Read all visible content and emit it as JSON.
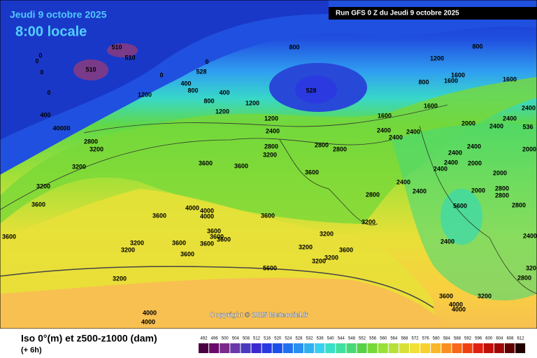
{
  "header": {
    "date": "Jeudi 9 octobre 2025",
    "time": "8:00 locale",
    "run": "Run GFS 0 Z du Jeudi 9 octobre 2025"
  },
  "footer": {
    "title": "Iso 0°(m) et z500-z1000 (dam)",
    "step": "(+ 6h)",
    "copyright": "Copyright © 2025 Meteociel.fr"
  },
  "scale": {
    "values": [
      492,
      496,
      500,
      504,
      508,
      512,
      516,
      520,
      524,
      528,
      532,
      536,
      540,
      544,
      548,
      552,
      556,
      560,
      564,
      568,
      572,
      576,
      580,
      584,
      588,
      592,
      596,
      600,
      604,
      608,
      612
    ],
    "colors": [
      "#4a0040",
      "#6a0a6a",
      "#7a2a8a",
      "#6a3aa8",
      "#4a3ac0",
      "#3a2ad0",
      "#2a3ae0",
      "#1a50e8",
      "#2070f0",
      "#2890f0",
      "#30b0f0",
      "#38d0f0",
      "#38e0c8",
      "#40e0a0",
      "#48d878",
      "#58d048",
      "#78d838",
      "#98e038",
      "#b8e038",
      "#d8e038",
      "#f0e038",
      "#f8d030",
      "#f8b828",
      "#f89020",
      "#f86818",
      "#f04010",
      "#e02010",
      "#c01008",
      "#a00808",
      "#600000",
      "#200000"
    ]
  },
  "contour_labels": [
    510,
    510,
    510,
    0,
    0,
    0,
    0,
    0,
    0,
    528,
    800,
    528,
    400,
    800,
    400,
    1200,
    800,
    1200,
    400,
    1200,
    40000,
    1200,
    2400,
    1200,
    800,
    1600,
    1600,
    1600,
    800,
    1600,
    1600,
    2400,
    2400,
    2000,
    2400,
    536,
    2400,
    2400,
    2400,
    2800,
    3200,
    2800,
    3200,
    2800,
    2800,
    3200,
    3600,
    3600,
    3600,
    2400,
    2400,
    2000,
    2400,
    2000,
    2400,
    2000,
    3200,
    2400,
    2400,
    2800,
    2000,
    2800,
    2800,
    3600,
    4000,
    4000,
    3600,
    4000,
    3600,
    5600,
    2800,
    3200,
    3600,
    3600,
    3600,
    3200,
    3200,
    3200,
    3600,
    3600,
    3600,
    3200,
    3600,
    2400,
    2400,
    3200,
    3200,
    3600,
    5600,
    3200,
    2800,
    3200,
    3600,
    4000,
    4000,
    3200,
    4000,
    4000
  ]
}
